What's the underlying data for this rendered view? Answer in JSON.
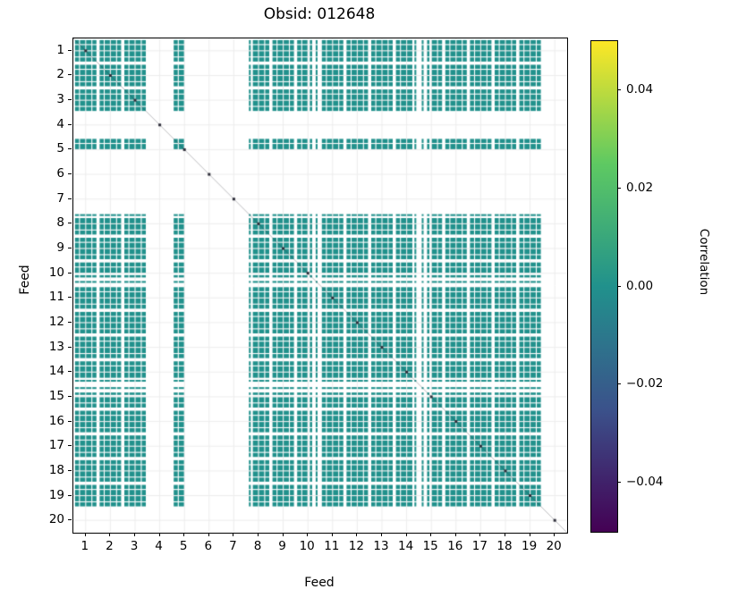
{
  "chart_data": {
    "type": "heatmap",
    "title": "Obsid: 012648",
    "xlabel": "Feed",
    "ylabel": "Feed",
    "x_ticks": [
      "1",
      "2",
      "3",
      "4",
      "5",
      "6",
      "7",
      "8",
      "9",
      "10",
      "11",
      "12",
      "13",
      "14",
      "15",
      "16",
      "17",
      "18",
      "19",
      "20"
    ],
    "y_ticks": [
      "1",
      "2",
      "3",
      "4",
      "5",
      "6",
      "7",
      "8",
      "9",
      "10",
      "11",
      "12",
      "13",
      "14",
      "15",
      "16",
      "17",
      "18",
      "19",
      "20"
    ],
    "bands_per_feed": 4,
    "value_present": 0.0,
    "presence_by_feed": [
      [
        1,
        1,
        1,
        1
      ],
      [
        1,
        1,
        1,
        1
      ],
      [
        1,
        1,
        1,
        1
      ],
      [
        0,
        0,
        0,
        0
      ],
      [
        1,
        1,
        0,
        0
      ],
      [
        0,
        0,
        0,
        0
      ],
      [
        0,
        0,
        0,
        0
      ],
      [
        0.5,
        1,
        1,
        1
      ],
      [
        1,
        1,
        1,
        1
      ],
      [
        1,
        1,
        0.5,
        0.5
      ],
      [
        1,
        1,
        1,
        1
      ],
      [
        1,
        1,
        1,
        1
      ],
      [
        1,
        1,
        1,
        1
      ],
      [
        1,
        1,
        1,
        0.5
      ],
      [
        0.5,
        0.5,
        1,
        1
      ],
      [
        1,
        1,
        1,
        1
      ],
      [
        1,
        1,
        1,
        1
      ],
      [
        1,
        1,
        1,
        1
      ],
      [
        1,
        1,
        1,
        1
      ],
      [
        0,
        0,
        0,
        0
      ]
    ],
    "diagonal_marks": "small dark specks at each feed's diagonal cell",
    "colorbar": {
      "label": "Correlation",
      "range": [
        -0.05,
        0.05
      ],
      "tick_labels": [
        "0.04",
        "0.02",
        "0.00",
        "−0.02",
        "−0.04"
      ],
      "tick_values": [
        0.04,
        0.02,
        0.0,
        -0.02,
        -0.04
      ],
      "colormap": "viridis",
      "stops": [
        "#440154",
        "#3b528b",
        "#21918c",
        "#5ec962",
        "#fde725"
      ]
    },
    "colors": {
      "cell": "#21918c",
      "grid": "#ededed",
      "diagonal": "#2e2e3a",
      "background": "#ffffff"
    }
  }
}
